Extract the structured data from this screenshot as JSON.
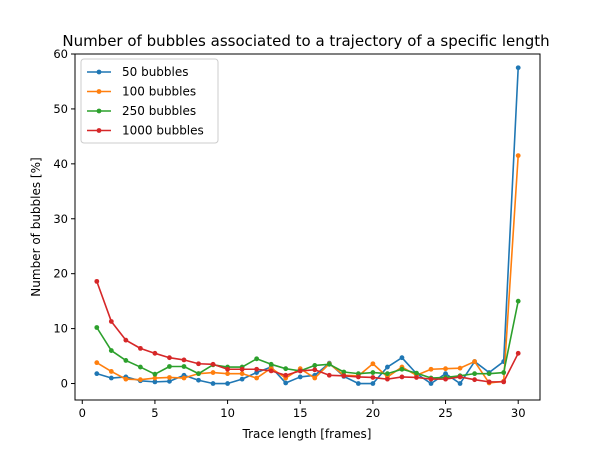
{
  "chart_data": {
    "type": "line",
    "title": "Number of bubbles associated to a trajectory of a specific length",
    "xlabel": "Trace length [frames]",
    "ylabel": "Number of bubbles [%]",
    "xlim": [
      -0.5,
      31.5
    ],
    "ylim": [
      -3,
      60
    ],
    "xticks": [
      0,
      5,
      10,
      15,
      20,
      25,
      30
    ],
    "yticks": [
      0,
      10,
      20,
      30,
      40,
      50,
      60
    ],
    "grid": false,
    "legend_position": "top-left",
    "x": [
      1,
      2,
      3,
      4,
      5,
      6,
      7,
      8,
      9,
      10,
      11,
      12,
      13,
      14,
      15,
      16,
      17,
      18,
      19,
      20,
      21,
      22,
      23,
      24,
      25,
      26,
      27,
      28,
      29,
      30
    ],
    "series": [
      {
        "name": "50 bubbles",
        "color": "#1f77b4",
        "values": [
          1.8,
          1.0,
          1.2,
          0.5,
          0.3,
          0.4,
          1.5,
          0.6,
          0.0,
          0.0,
          0.8,
          2.0,
          3.0,
          0.1,
          1.2,
          1.5,
          3.7,
          1.3,
          0.0,
          0.0,
          3.0,
          4.7,
          1.8,
          0.0,
          1.8,
          0.0,
          4.0,
          2.0,
          4.0,
          57.5
        ]
      },
      {
        "name": "100 bubbles",
        "color": "#ff7f0e",
        "values": [
          3.8,
          2.2,
          0.8,
          0.7,
          1.0,
          1.1,
          1.0,
          1.8,
          2.0,
          1.8,
          1.8,
          1.0,
          2.8,
          1.0,
          2.7,
          1.0,
          3.6,
          1.5,
          1.4,
          3.6,
          1.2,
          3.0,
          1.5,
          2.6,
          2.7,
          2.8,
          4.0,
          0.1,
          0.4,
          41.5
        ]
      },
      {
        "name": "250 bubbles",
        "color": "#2ca02c",
        "values": [
          10.2,
          6.0,
          4.2,
          3.0,
          1.7,
          3.1,
          3.1,
          1.8,
          3.4,
          3.0,
          3.0,
          4.5,
          3.5,
          2.7,
          2.3,
          3.3,
          3.5,
          2.1,
          1.8,
          2.0,
          1.8,
          2.6,
          1.9,
          1.0,
          1.1,
          1.4,
          1.8,
          1.8,
          2.0,
          15.0
        ]
      },
      {
        "name": "1000 bubbles",
        "color": "#d62728",
        "values": [
          18.6,
          11.3,
          7.9,
          6.4,
          5.5,
          4.7,
          4.3,
          3.6,
          3.5,
          2.6,
          2.6,
          2.6,
          2.3,
          1.5,
          2.3,
          2.5,
          1.5,
          1.4,
          1.2,
          1.1,
          0.8,
          1.2,
          1.1,
          0.8,
          0.8,
          1.2,
          0.7,
          0.3,
          0.3,
          5.5
        ]
      }
    ]
  }
}
